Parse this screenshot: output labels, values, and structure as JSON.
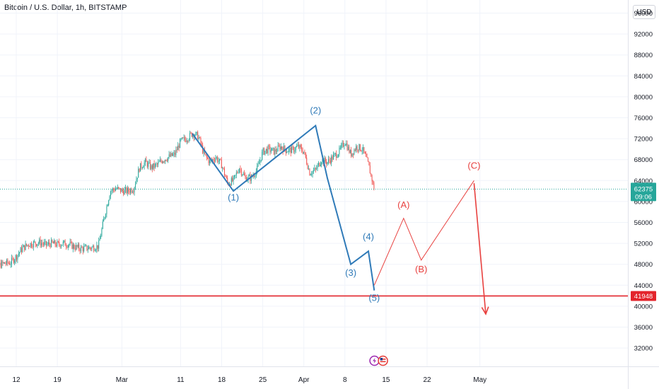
{
  "header": {
    "title": "Bitcoin / U.S. Dollar, 1h, BITSTAMP",
    "currency_button": "USD"
  },
  "colors": {
    "up": "#26a69a",
    "down": "#ef5350",
    "wave_blue": "#2f7ab8",
    "wave_red": "#e8413f",
    "support_line": "#e3242b",
    "price_label_bg": "#26a69a",
    "price_label_bg_dark": "#1e8a80"
  },
  "chart_data": {
    "type": "line",
    "title": "Bitcoin / U.S. Dollar, 1h, BITSTAMP",
    "xlabel": "",
    "ylabel": "",
    "ylim": [
      28500,
      98500
    ],
    "x_axis_labels": [
      "12",
      "19",
      "Mar",
      "11",
      "18",
      "25",
      "Apr",
      "8",
      "15",
      "22",
      "May"
    ],
    "y_axis_labels": [
      "96000",
      "92000",
      "88000",
      "84000",
      "80000",
      "76000",
      "72000",
      "68000",
      "64000",
      "60000",
      "56000",
      "52000",
      "48000",
      "44000",
      "40000",
      "36000",
      "32000"
    ],
    "last_price": {
      "value": "62375",
      "countdown": "09:06"
    },
    "support_level": {
      "value": "41948"
    },
    "grid": true,
    "series": [
      {
        "kind": "price",
        "points": [
          [
            "Feb 07",
            45000
          ],
          [
            "Feb 08",
            46500
          ],
          [
            "Feb 09",
            47800
          ],
          [
            "Feb 10",
            48200
          ],
          [
            "Feb 11",
            48300
          ],
          [
            "Feb 12",
            49500
          ],
          [
            "Feb 13",
            51000
          ],
          [
            "Feb 14",
            51800
          ],
          [
            "Feb 15",
            52000
          ],
          [
            "Feb 16",
            52200
          ],
          [
            "Feb 17",
            51700
          ],
          [
            "Feb 18",
            52000
          ],
          [
            "Feb 19",
            51800
          ],
          [
            "Feb 20",
            52000
          ],
          [
            "Feb 21",
            51800
          ],
          [
            "Feb 22",
            51300
          ],
          [
            "Feb 23",
            51000
          ],
          [
            "Feb 24",
            51100
          ],
          [
            "Feb 25",
            51200
          ],
          [
            "Feb 26",
            51500
          ],
          [
            "Feb 27",
            57000
          ],
          [
            "Feb 28",
            62000
          ],
          [
            "Feb 29",
            62500
          ],
          [
            "Mar 01",
            62000
          ],
          [
            "Mar 02",
            62000
          ],
          [
            "Mar 03",
            62500
          ],
          [
            "Mar 04",
            66500
          ],
          [
            "Mar 05",
            67500
          ],
          [
            "Mar 06",
            66500
          ],
          [
            "Mar 07",
            67000
          ],
          [
            "Mar 08",
            68000
          ],
          [
            "Mar 09",
            68500
          ],
          [
            "Mar 10",
            69000
          ],
          [
            "Mar 11",
            71500
          ],
          [
            "Mar 12",
            72000
          ],
          [
            "Mar 13",
            73000
          ],
          [
            "Mar 14",
            72500
          ],
          [
            "Mar 15",
            69000
          ],
          [
            "Mar 16",
            67500
          ],
          [
            "Mar 17",
            68500
          ],
          [
            "Mar 18",
            67000
          ],
          [
            "Mar 19",
            63500
          ],
          [
            "Mar 20",
            64000
          ],
          [
            "Mar 21",
            66500
          ],
          [
            "Mar 22",
            64500
          ],
          [
            "Mar 23",
            64500
          ],
          [
            "Mar 24",
            66000
          ],
          [
            "Mar 25",
            69500
          ],
          [
            "Mar 26",
            70000
          ],
          [
            "Mar 27",
            69500
          ],
          [
            "Mar 28",
            70500
          ],
          [
            "Mar 29",
            69800
          ],
          [
            "Mar 30",
            69800
          ],
          [
            "Mar 31",
            70500
          ],
          [
            "Apr 01",
            69500
          ],
          [
            "Apr 02",
            65500
          ],
          [
            "Apr 03",
            66000
          ],
          [
            "Apr 04",
            68000
          ],
          [
            "Apr 05",
            67500
          ],
          [
            "Apr 06",
            68500
          ],
          [
            "Apr 07",
            69500
          ],
          [
            "Apr 08",
            71500
          ],
          [
            "Apr 09",
            69000
          ],
          [
            "Apr 10",
            70500
          ],
          [
            "Apr 11",
            70000
          ],
          [
            "Apr 12",
            67000
          ],
          [
            "Apr 13",
            62375
          ]
        ]
      },
      {
        "kind": "wave-blue",
        "points": [
          [
            "Mar 13",
            73000
          ],
          [
            "Mar 20",
            62000
          ],
          [
            "Apr 03",
            74500
          ],
          [
            "Apr 05",
            64500
          ],
          [
            "Apr 09",
            48000
          ],
          [
            "Apr 12",
            50500
          ],
          [
            "Apr 13",
            43000
          ]
        ],
        "labels": [
          {
            "text": "(1)",
            "at": [
              "Mar 20",
              60200
            ]
          },
          {
            "text": "(2)",
            "at": [
              "Apr 03",
              76800
            ]
          },
          {
            "text": "(3)",
            "at": [
              "Apr 09",
              45800
            ]
          },
          {
            "text": "(4)",
            "at": [
              "Apr 12",
              52700
            ]
          },
          {
            "text": "(5)",
            "at": [
              "Apr 13",
              41000
            ]
          }
        ]
      },
      {
        "kind": "wave-red",
        "points": [
          [
            "Apr 13",
            44000
          ],
          [
            "Apr 18",
            56800
          ],
          [
            "Apr 21",
            48800
          ],
          [
            "Apr 30",
            64000
          ]
        ],
        "labels": [
          {
            "text": "(A)",
            "at": [
              "Apr 18",
              58800
            ]
          },
          {
            "text": "(B)",
            "at": [
              "Apr 21",
              46500
            ]
          },
          {
            "text": "(C)",
            "at": [
              "Apr 30",
              66300
            ]
          }
        ]
      },
      {
        "kind": "arrow-red",
        "points": [
          [
            "Apr 30",
            63500
          ],
          [
            "May 02",
            38500
          ]
        ]
      }
    ]
  }
}
